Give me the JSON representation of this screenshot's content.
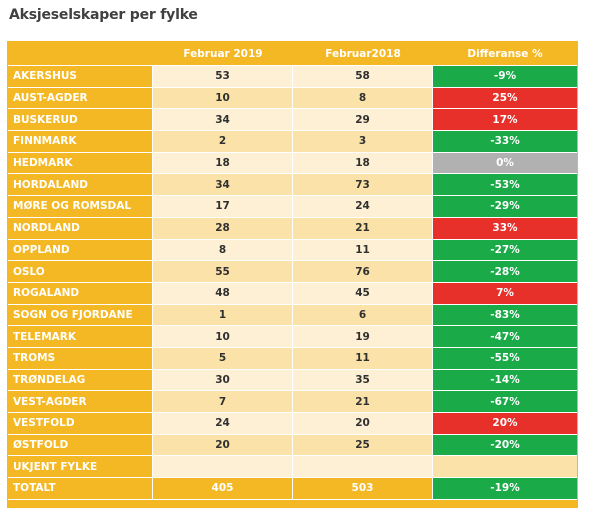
{
  "title": "Aksjeselskaper per fylke",
  "columns": [
    "",
    "Februar 2019",
    "Februar2018",
    "Differanse %"
  ],
  "rows": [
    {
      "name": "AKERSHUS",
      "v2019": "53",
      "v2018": "58",
      "diff": "-9%",
      "status": "negative"
    },
    {
      "name": "AUST-AGDER",
      "v2019": "10",
      "v2018": "8",
      "diff": "25%",
      "status": "positive"
    },
    {
      "name": "BUSKERUD",
      "v2019": "34",
      "v2018": "29",
      "diff": "17%",
      "status": "positive"
    },
    {
      "name": "FINNMARK",
      "v2019": "2",
      "v2018": "3",
      "diff": "-33%",
      "status": "negative"
    },
    {
      "name": "HEDMARK",
      "v2019": "18",
      "v2018": "18",
      "diff": "0%",
      "status": "neutral"
    },
    {
      "name": "HORDALAND",
      "v2019": "34",
      "v2018": "73",
      "diff": "-53%",
      "status": "negative"
    },
    {
      "name": "MØRE OG ROMSDAL",
      "v2019": "17",
      "v2018": "24",
      "diff": "-29%",
      "status": "negative"
    },
    {
      "name": "NORDLAND",
      "v2019": "28",
      "v2018": "21",
      "diff": "33%",
      "status": "positive"
    },
    {
      "name": "OPPLAND",
      "v2019": "8",
      "v2018": "11",
      "diff": "-27%",
      "status": "negative"
    },
    {
      "name": "OSLO",
      "v2019": "55",
      "v2018": "76",
      "diff": "-28%",
      "status": "negative"
    },
    {
      "name": "ROGALAND",
      "v2019": "48",
      "v2018": "45",
      "diff": "7%",
      "status": "positive"
    },
    {
      "name": "SOGN OG FJORDANE",
      "v2019": "1",
      "v2018": "6",
      "diff": "-83%",
      "status": "negative"
    },
    {
      "name": "TELEMARK",
      "v2019": "10",
      "v2018": "19",
      "diff": "-47%",
      "status": "negative"
    },
    {
      "name": "TROMS",
      "v2019": "5",
      "v2018": "11",
      "diff": "-55%",
      "status": "negative"
    },
    {
      "name": "TRØNDELAG",
      "v2019": "30",
      "v2018": "35",
      "diff": "-14%",
      "status": "negative"
    },
    {
      "name": "VEST-AGDER",
      "v2019": "7",
      "v2018": "21",
      "diff": "-67%",
      "status": "negative"
    },
    {
      "name": "VESTFOLD",
      "v2019": "24",
      "v2018": "20",
      "diff": "20%",
      "status": "positive"
    },
    {
      "name": "ØSTFOLD",
      "v2019": "20",
      "v2018": "25",
      "diff": "-20%",
      "status": "negative"
    },
    {
      "name": "UKJENT FYLKE",
      "v2019": "",
      "v2018": "",
      "diff": "",
      "status": "empty"
    }
  ],
  "total": {
    "name": "TOTALT",
    "v2019": "405",
    "v2018": "503",
    "diff": "-19%",
    "status": "negative"
  },
  "colors": {
    "header": "#f5b825",
    "row_light": "#fdf0d4",
    "row_dark": "#fbe2a9",
    "negative": "#1aaa48",
    "positive": "#e8302a",
    "neutral": "#b1b1b1"
  }
}
